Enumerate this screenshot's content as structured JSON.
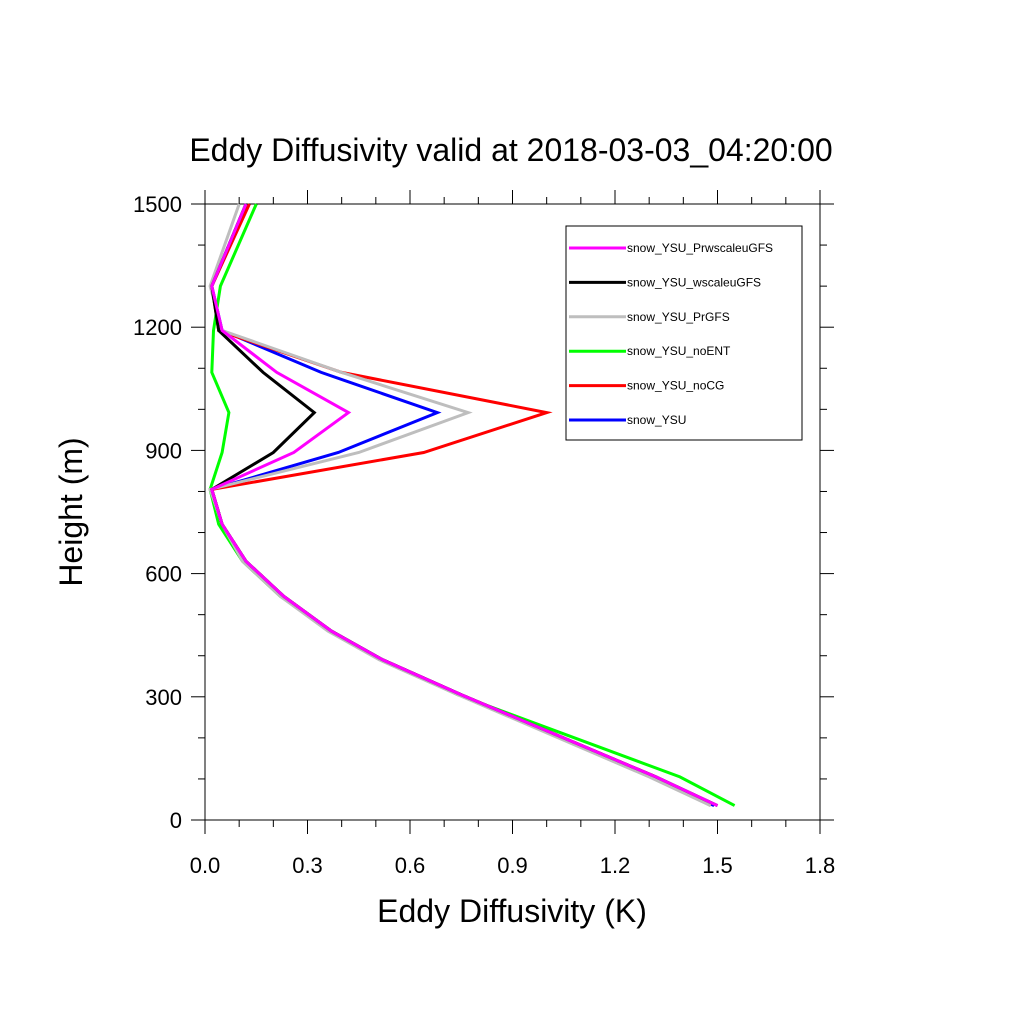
{
  "chart_data": {
    "type": "line",
    "title": "Eddy Diffusivity valid at 2018-03-03_04:20:00",
    "xlabel": "Eddy Diffusivity (K)",
    "ylabel": "Height (m)",
    "xlim": [
      0,
      1.8
    ],
    "ylim": [
      0,
      1500
    ],
    "xticks": [
      "0.0",
      "0.3",
      "0.6",
      "0.9",
      "1.2",
      "1.5",
      "1.8"
    ],
    "yticks": [
      "0",
      "300",
      "600",
      "900",
      "1200",
      "1500"
    ],
    "legend_position": "top-right",
    "series": [
      {
        "name": "snow_YSU_PrwscaleuGFS",
        "color": "#ff00ff",
        "points": [
          [
            1.5,
            35
          ],
          [
            1.32,
            105
          ],
          [
            0.75,
            305
          ],
          [
            0.52,
            390
          ],
          [
            0.37,
            460
          ],
          [
            0.23,
            545
          ],
          [
            0.12,
            630
          ],
          [
            0.05,
            720
          ],
          [
            0.02,
            805
          ],
          [
            0.26,
            895
          ],
          [
            0.42,
            992
          ],
          [
            0.21,
            1090
          ],
          [
            0.05,
            1192
          ],
          [
            0.02,
            1300
          ],
          [
            0.12,
            1500
          ]
        ]
      },
      {
        "name": "snow_YSU_wscaleuGFS",
        "color": "#000000",
        "points": [
          [
            1.5,
            35
          ],
          [
            1.32,
            105
          ],
          [
            0.75,
            305
          ],
          [
            0.52,
            390
          ],
          [
            0.37,
            460
          ],
          [
            0.23,
            545
          ],
          [
            0.12,
            630
          ],
          [
            0.05,
            720
          ],
          [
            0.02,
            805
          ],
          [
            0.2,
            895
          ],
          [
            0.32,
            992
          ],
          [
            0.17,
            1090
          ],
          [
            0.04,
            1192
          ],
          [
            0.02,
            1300
          ],
          [
            0.12,
            1500
          ]
        ]
      },
      {
        "name": "snow_YSU_PrGFS",
        "color": "#bebebe",
        "points": [
          [
            1.48,
            35
          ],
          [
            1.3,
            105
          ],
          [
            0.74,
            305
          ],
          [
            0.51,
            390
          ],
          [
            0.36,
            460
          ],
          [
            0.22,
            545
          ],
          [
            0.11,
            630
          ],
          [
            0.05,
            720
          ],
          [
            0.015,
            805
          ],
          [
            0.45,
            895
          ],
          [
            0.77,
            992
          ],
          [
            0.4,
            1090
          ],
          [
            0.05,
            1192
          ],
          [
            0.015,
            1300
          ],
          [
            0.1,
            1500
          ]
        ]
      },
      {
        "name": "snow_YSU_noENT",
        "color": "#00ff00",
        "points": [
          [
            1.55,
            35
          ],
          [
            1.39,
            105
          ],
          [
            0.74,
            305
          ],
          [
            0.52,
            390
          ],
          [
            0.37,
            460
          ],
          [
            0.22,
            545
          ],
          [
            0.11,
            630
          ],
          [
            0.04,
            720
          ],
          [
            0.015,
            805
          ],
          [
            0.05,
            895
          ],
          [
            0.07,
            992
          ],
          [
            0.02,
            1090
          ],
          [
            0.025,
            1192
          ],
          [
            0.045,
            1300
          ],
          [
            0.15,
            1500
          ]
        ]
      },
      {
        "name": "snow_YSU_noCG",
        "color": "#ff0000",
        "points": [
          [
            1.48,
            35
          ],
          [
            1.32,
            105
          ],
          [
            0.75,
            305
          ],
          [
            0.52,
            390
          ],
          [
            0.37,
            460
          ],
          [
            0.23,
            545
          ],
          [
            0.12,
            630
          ],
          [
            0.05,
            720
          ],
          [
            0.02,
            805
          ],
          [
            0.64,
            895
          ],
          [
            1.0,
            992
          ],
          [
            0.4,
            1090
          ],
          [
            0.04,
            1192
          ],
          [
            0.02,
            1300
          ],
          [
            0.13,
            1500
          ]
        ]
      },
      {
        "name": "snow_YSU",
        "color": "#0000ff",
        "points": [
          [
            1.49,
            35
          ],
          [
            1.31,
            105
          ],
          [
            0.75,
            305
          ],
          [
            0.52,
            390
          ],
          [
            0.37,
            460
          ],
          [
            0.23,
            545
          ],
          [
            0.12,
            630
          ],
          [
            0.05,
            720
          ],
          [
            0.02,
            805
          ],
          [
            0.39,
            895
          ],
          [
            0.68,
            992
          ],
          [
            0.34,
            1090
          ],
          [
            0.05,
            1192
          ],
          [
            0.02,
            1300
          ],
          [
            0.12,
            1500
          ]
        ]
      }
    ]
  }
}
